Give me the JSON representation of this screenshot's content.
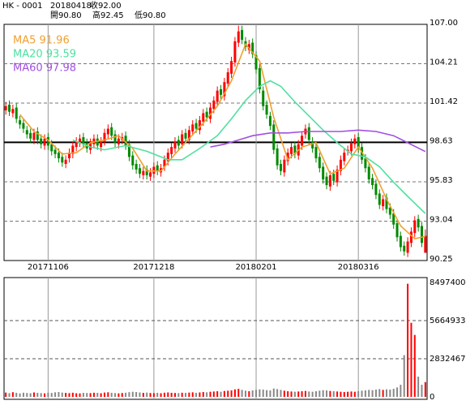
{
  "header": {
    "code": "HK - 0001",
    "date": "20180418",
    "close": "收92.00",
    "open": "開90.80",
    "high": "高92.45",
    "low": "低90.80"
  },
  "chart_data": [
    {
      "type": "candlestick",
      "categories": [
        null,
        null,
        null,
        null,
        null,
        null,
        null,
        null,
        null,
        null,
        null,
        null,
        "20171106",
        null,
        null,
        null,
        null,
        null,
        null,
        null,
        null,
        null,
        null,
        null,
        null,
        null,
        null,
        null,
        null,
        null,
        null,
        null,
        null,
        null,
        null,
        null,
        null,
        null,
        null,
        null,
        null,
        null,
        "20171218",
        null,
        null,
        null,
        null,
        null,
        null,
        null,
        null,
        null,
        null,
        null,
        null,
        null,
        null,
        null,
        null,
        null,
        null,
        null,
        null,
        null,
        null,
        null,
        null,
        null,
        null,
        null,
        null,
        "20180201",
        null,
        null,
        null,
        null,
        null,
        null,
        null,
        null,
        null,
        null,
        null,
        null,
        null,
        null,
        null,
        null,
        null,
        null,
        null,
        null,
        null,
        null,
        null,
        null,
        null,
        null,
        null,
        null,
        "20180316",
        null,
        null,
        null,
        null,
        null,
        null,
        null,
        null,
        null,
        null,
        null,
        null,
        null,
        null,
        null,
        null,
        null,
        null,
        null
      ],
      "open": [
        100.9,
        101.3,
        100.7,
        101.1,
        100.2,
        100.0,
        99.5,
        99.3,
        98.8,
        99.4,
        98.9,
        98.4,
        99.0,
        98.5,
        98.1,
        97.9,
        97.6,
        97.1,
        97.5,
        97.8,
        98.3,
        98.6,
        99.0,
        98.6,
        98.1,
        98.5,
        98.9,
        98.3,
        98.7,
        99.2,
        99.7,
        99.2,
        98.5,
        98.8,
        99.1,
        98.5,
        97.7,
        97.1,
        96.8,
        96.3,
        96.7,
        96.2,
        96.4,
        97.0,
        96.5,
        96.9,
        97.3,
        97.8,
        98.2,
        98.8,
        98.5,
        99.3,
        98.8,
        99.4,
        100.0,
        99.5,
        100.1,
        100.8,
        100.3,
        101.0,
        101.5,
        102.4,
        101.9,
        102.8,
        103.5,
        104.3,
        105.7,
        106.6,
        105.8,
        105.2,
        105.7,
        104.8,
        103.9,
        102.3,
        101.3,
        100.5,
        99.9,
        98.2,
        97.1,
        96.5,
        97.3,
        97.8,
        98.4,
        97.7,
        98.4,
        99.2,
        99.7,
        98.7,
        98.3,
        97.6,
        96.9,
        96.2,
        95.5,
        96.4,
        95.8,
        96.6,
        97.3,
        98.0,
        98.0,
        98.5,
        99.0,
        98.3,
        97.5,
        96.9,
        96.1,
        95.7,
        95.0,
        94.1,
        94.7,
        94.0,
        93.6,
        92.9,
        92.0,
        91.3,
        90.8,
        91.5,
        92.2,
        93.2,
        92.7,
        90.8
      ],
      "high": [
        101.5,
        101.6,
        101.3,
        101.4,
        100.5,
        100.3,
        99.8,
        99.6,
        99.6,
        99.7,
        99.2,
        99.2,
        99.3,
        98.8,
        98.4,
        98.2,
        97.9,
        97.7,
        98.2,
        98.7,
        99.0,
        99.2,
        99.3,
        98.9,
        98.9,
        99.2,
        99.2,
        99.0,
        99.6,
        99.9,
        100.0,
        99.5,
        99.2,
        99.3,
        99.4,
        98.8,
        98.0,
        97.4,
        97.1,
        96.9,
        97.0,
        96.8,
        97.2,
        97.3,
        97.1,
        97.7,
        98.2,
        98.6,
        99.0,
        99.1,
        99.5,
        99.6,
        99.8,
        100.2,
        100.3,
        100.5,
        101.0,
        101.1,
        101.4,
        101.9,
        102.6,
        102.7,
        103.2,
        103.9,
        104.7,
        106.1,
        106.9,
        106.9,
        106.1,
        105.9,
        106.0,
        105.1,
        104.2,
        102.6,
        101.6,
        100.8,
        100.2,
        98.5,
        97.4,
        97.7,
        98.2,
        98.6,
        98.7,
        98.8,
        99.4,
        99.9,
        100.0,
        99.0,
        98.6,
        97.9,
        97.2,
        96.5,
        96.6,
        96.7,
        97.0,
        97.7,
        98.2,
        98.4,
        98.9,
        99.2,
        99.3,
        98.6,
        97.8,
        97.2,
        96.4,
        96.0,
        95.3,
        94.9,
        95.0,
        94.3,
        93.9,
        93.2,
        92.3,
        91.6,
        91.9,
        92.6,
        93.4,
        93.5,
        93.0,
        92.45
      ],
      "low": [
        100.6,
        100.5,
        100.4,
        100.0,
        99.6,
        99.3,
        98.9,
        98.6,
        98.5,
        98.5,
        98.2,
        98.1,
        98.1,
        97.7,
        97.5,
        97.2,
        96.9,
        96.8,
        97.2,
        97.5,
        98.0,
        98.3,
        98.2,
        97.9,
        97.8,
        98.2,
        98.1,
        98.0,
        98.4,
        98.9,
        98.8,
        98.3,
        98.2,
        98.5,
        98.1,
        97.3,
        96.7,
        96.4,
        96.1,
        96.0,
        96.0,
        95.9,
        96.1,
        96.3,
        96.2,
        96.6,
        97.0,
        97.5,
        97.9,
        98.1,
        98.2,
        98.6,
        98.5,
        99.1,
        99.3,
        99.2,
        99.8,
        100.1,
        100.0,
        100.7,
        101.2,
        101.7,
        101.6,
        102.5,
        103.2,
        104.0,
        105.4,
        105.6,
        105.1,
        104.9,
        104.6,
        103.5,
        102.1,
        100.9,
        100.3,
        99.5,
        97.8,
        96.7,
        96.3,
        96.2,
        97.0,
        97.5,
        97.5,
        97.4,
        98.1,
        98.9,
        98.5,
        97.9,
        97.2,
        96.5,
        95.7,
        95.3,
        95.2,
        95.6,
        95.5,
        96.3,
        97.0,
        97.7,
        97.7,
        98.2,
        97.9,
        97.1,
        96.5,
        95.7,
        95.3,
        94.6,
        93.9,
        93.8,
        93.6,
        93.2,
        92.5,
        91.6,
        90.9,
        90.6,
        90.5,
        91.2,
        91.9,
        92.3,
        91.2,
        90.8
      ],
      "close": [
        101.2,
        100.8,
        101.0,
        100.3,
        99.9,
        99.6,
        99.2,
        98.9,
        99.3,
        98.8,
        98.5,
        98.9,
        98.4,
        98.0,
        97.8,
        97.5,
        97.2,
        97.4,
        97.9,
        98.4,
        98.7,
        98.9,
        98.5,
        98.2,
        98.6,
        98.9,
        98.4,
        98.7,
        99.3,
        99.6,
        99.1,
        98.6,
        98.9,
        99.0,
        98.4,
        97.6,
        97.0,
        96.7,
        96.4,
        96.6,
        96.3,
        96.5,
        96.9,
        96.6,
        96.8,
        97.4,
        97.9,
        98.3,
        98.7,
        98.4,
        99.2,
        98.9,
        99.5,
        99.9,
        99.6,
        100.2,
        100.7,
        100.4,
        101.1,
        101.6,
        102.3,
        102.0,
        102.9,
        103.6,
        104.4,
        105.8,
        106.5,
        105.9,
        105.4,
        105.6,
        104.9,
        103.8,
        102.4,
        101.2,
        100.6,
        99.8,
        98.1,
        97.0,
        96.6,
        97.4,
        97.9,
        98.3,
        97.8,
        98.5,
        99.1,
        99.6,
        98.8,
        98.2,
        97.5,
        96.8,
        96.0,
        95.6,
        96.3,
        95.9,
        96.7,
        97.4,
        97.9,
        98.1,
        98.6,
        98.9,
        98.2,
        97.4,
        96.8,
        96.0,
        95.6,
        94.9,
        94.2,
        94.6,
        93.9,
        93.5,
        92.8,
        91.9,
        91.2,
        90.9,
        91.6,
        92.3,
        93.1,
        92.6,
        91.5,
        92.0
      ],
      "up_color": "#ff0000",
      "down_color": "#008a00",
      "series": [
        {
          "name": "MA5 91.96",
          "color": "#f0a030",
          "x": [
            4,
            8,
            12,
            16,
            20,
            24,
            28,
            32,
            36,
            40,
            44,
            48,
            52,
            56,
            60,
            64,
            68,
            72,
            76,
            80,
            84,
            88,
            92,
            96,
            100,
            104,
            108,
            112,
            116,
            119
          ],
          "values": [
            100.6,
            99.4,
            98.8,
            97.8,
            97.9,
            98.6,
            98.8,
            99.1,
            98.2,
            96.6,
            96.6,
            97.8,
            98.9,
            100.0,
            101.2,
            103.0,
            105.6,
            104.4,
            100.4,
            97.4,
            98.3,
            98.6,
            96.4,
            96.8,
            98.3,
            96.8,
            94.6,
            92.7,
            91.8,
            91.96
          ]
        },
        {
          "name": "MA20 93.59",
          "color": "#50e0a0",
          "x": [
            19,
            24,
            28,
            34,
            40,
            46,
            50,
            55,
            60,
            64,
            68,
            72,
            75,
            78,
            82,
            86,
            90,
            94,
            98,
            102,
            106,
            110,
            114,
            119
          ],
          "values": [
            98.8,
            98.3,
            98.1,
            98.4,
            98.0,
            97.4,
            97.4,
            98.2,
            99.1,
            100.3,
            101.6,
            102.6,
            103.0,
            102.6,
            101.5,
            100.5,
            99.5,
            98.6,
            97.8,
            97.6,
            96.9,
            95.8,
            94.8,
            93.59
          ]
        },
        {
          "name": "MA60 97.98",
          "color": "#a050e0",
          "x": [
            58,
            62,
            66,
            70,
            75,
            80,
            85,
            90,
            95,
            100,
            105,
            110,
            114,
            119
          ],
          "values": [
            98.3,
            98.5,
            98.8,
            99.1,
            99.3,
            99.3,
            99.4,
            99.4,
            99.4,
            99.5,
            99.4,
            99.1,
            98.6,
            97.98
          ]
        }
      ],
      "ylim": [
        90.25,
        107
      ],
      "yticks": [
        {
          "value": 107,
          "label": "107.00"
        },
        104.21,
        101.42,
        98.63,
        95.83,
        93.04,
        90.25
      ],
      "emphasized_ytick_index": 3,
      "grid": true
    },
    {
      "type": "bar",
      "values": [
        320000,
        280000,
        350000,
        300000,
        260000,
        310000,
        290000,
        270000,
        330000,
        300000,
        280000,
        260000,
        310000,
        290000,
        340000,
        360000,
        320000,
        300000,
        280000,
        310000,
        270000,
        260000,
        300000,
        290000,
        280000,
        310000,
        300000,
        270000,
        320000,
        340000,
        300000,
        280000,
        260000,
        290000,
        310000,
        350000,
        380000,
        360000,
        330000,
        300000,
        320000,
        290000,
        280000,
        300000,
        270000,
        310000,
        330000,
        300000,
        290000,
        280000,
        310000,
        300000,
        320000,
        340000,
        300000,
        330000,
        360000,
        340000,
        380000,
        400000,
        420000,
        380000,
        440000,
        460000,
        480000,
        560000,
        600000,
        520000,
        460000,
        420000,
        480000,
        520000,
        560000,
        540000,
        500000,
        480000,
        620000,
        580000,
        520000,
        460000,
        420000,
        400000,
        380000,
        400000,
        420000,
        440000,
        400000,
        380000,
        420000,
        460000,
        500000,
        480000,
        440000,
        420000,
        400000,
        380000,
        360000,
        380000,
        400000,
        380000,
        420000,
        460000,
        480000,
        520000,
        500000,
        540000,
        580000,
        520000,
        560000,
        540000,
        600000,
        700000,
        900000,
        3100000,
        8400000,
        5500000,
        4600000,
        1500000,
        900000,
        1100000
      ],
      "ylim": [
        0,
        8497400
      ],
      "yticks": [
        8497400,
        5664933,
        2832467,
        0
      ],
      "grid": true
    }
  ]
}
